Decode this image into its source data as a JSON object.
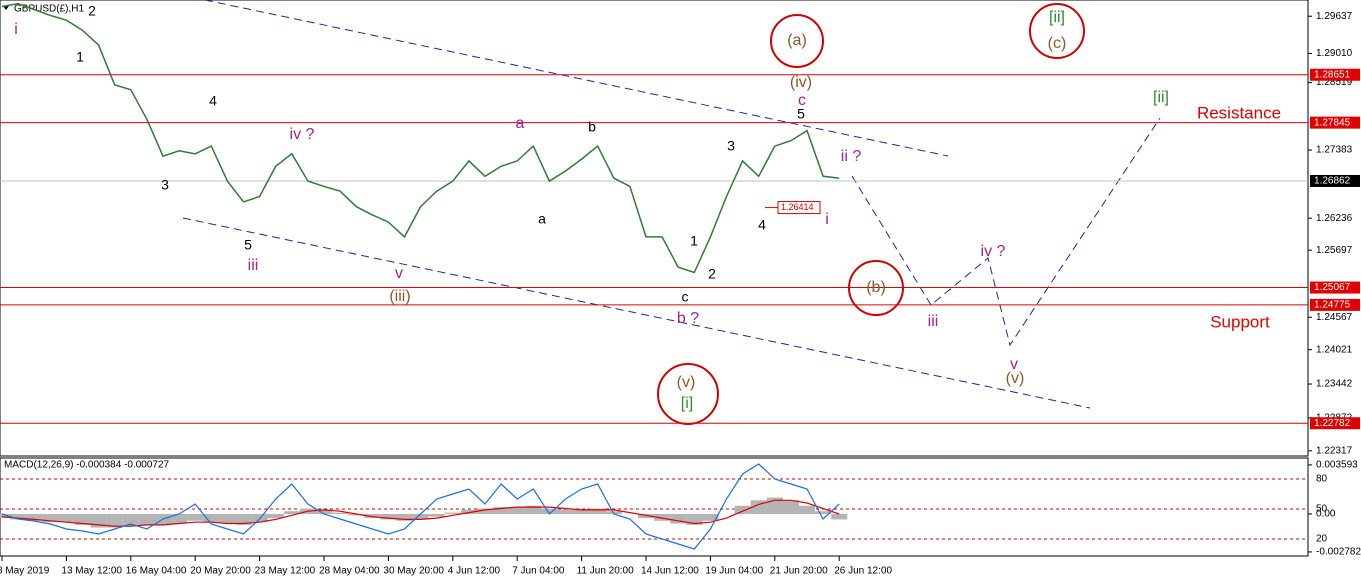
{
  "window_title": "GBPUSD(£),H1",
  "chart_data": [
    {
      "type": "line",
      "categories": [
        "8 May 2019",
        null,
        null,
        null,
        "13 May 12:00",
        null,
        null,
        null,
        "16 May 04:00",
        null,
        null,
        null,
        "20 May 20:00",
        null,
        null,
        null,
        "23 May 12:00",
        null,
        null,
        null,
        "28 May 04:00",
        null,
        null,
        null,
        "30 May 20:00",
        null,
        null,
        null,
        "4 Jun 12:00",
        null,
        null,
        null,
        "7 Jun 04:00",
        null,
        null,
        null,
        "11 Jun 20:00",
        null,
        null,
        null,
        "14 Jun 12:00",
        null,
        null,
        null,
        "19 Jun 04:00",
        null,
        null,
        null,
        "21 Jun 20:00",
        null,
        null,
        null,
        "26 Jun 12:00"
      ],
      "series": [
        {
          "color": "#2e7d32",
          "values": [
            1.298,
            1.2985,
            1.2975,
            1.2965,
            1.2957,
            1.294,
            1.2915,
            1.2848,
            1.284,
            1.279,
            1.2728,
            1.2737,
            1.2732,
            1.2745,
            1.2686,
            1.2651,
            1.266,
            1.2711,
            1.2732,
            1.2686,
            1.2677,
            1.2669,
            1.2643,
            1.2629,
            1.2617,
            1.2592,
            1.2643,
            1.2669,
            1.2686,
            1.272,
            1.2694,
            1.2711,
            1.272,
            1.2745,
            1.2686,
            1.2703,
            1.2723,
            1.2745,
            1.2691,
            1.2677,
            1.2592,
            1.2592,
            1.2541,
            1.2532,
            1.2592,
            1.266,
            1.272,
            1.2694,
            1.2745,
            1.2754,
            1.2771,
            1.2694,
            1.2691
          ]
        }
      ],
      "ylim": [
        1.2223,
        1.2991
      ],
      "yticks": [
        1.29637,
        {
          "value": 1.2901,
          "label": "1.29010"
        },
        1.28519,
        1.27383,
        1.26236,
        1.25697,
        1.24567,
        1.24021,
        1.23442,
        1.22872,
        1.22317
      ],
      "levels": [
        1.28651,
        1.27845,
        1.25067,
        1.24775,
        1.22782
      ],
      "level_color": "#e00000",
      "last_price": 1.26862,
      "marker_price": 1.26414,
      "annotations": [
        "i",
        "2",
        "1",
        "4",
        "3",
        "5",
        "iii",
        "iv ?",
        "v",
        "(iii)",
        "a",
        "b",
        "a",
        "c",
        "b ?",
        "1",
        "2",
        "3",
        "4",
        "5",
        "c",
        "(iv)",
        "(a)",
        "ii ?",
        "i",
        "(b)",
        "iii",
        "iv ?",
        "v",
        "(v)",
        "(v)",
        "[i]",
        "[ii]",
        "(c)",
        "[ii]",
        "Resistance",
        "Support"
      ]
    },
    {
      "type": "macd",
      "title": "MACD(12,26,9) -0.000384 -0.000727",
      "ylim": [
        -0.00308,
        0.0041
      ],
      "yticks": [
        0.003593,
        {
          "value": 0,
          "label": "0.00"
        },
        -0.002782
      ],
      "y2lim": [
        3,
        101
      ],
      "y2ticks": [
        80,
        50,
        20
      ],
      "series": [
        {
          "type": "bar",
          "color": "#b4b4b4",
          "values": [
            -0.0003,
            -0.0004,
            -0.0005,
            -0.0006,
            -0.0006,
            -0.0008,
            -0.001,
            -0.001,
            -0.0009,
            -0.0008,
            -0.0008,
            -0.0007,
            -0.0005,
            -0.0006,
            -0.0007,
            -0.0008,
            -0.0006,
            -0.0003,
            0.0002,
            0.0004,
            0.0003,
            0.0001,
            -0.0001,
            -0.0003,
            -0.0004,
            -0.0005,
            -0.0004,
            -0.0002,
            0.0001,
            0.0003,
            0.0004,
            0.0005,
            0.0005,
            0.0006,
            0.0004,
            0.0003,
            0.0003,
            0.0004,
            0.0002,
            0,
            -0.0003,
            -0.0005,
            -0.0007,
            -0.0008,
            -0.0005,
            0,
            0.0006,
            0.001,
            0.0012,
            0.001,
            0.0006,
            0.0002,
            -0.0004
          ]
        },
        {
          "type": "line",
          "color": "#e00000",
          "values": [
            -0.0002,
            -0.0003,
            -0.0004,
            -0.0005,
            -0.0006,
            -0.0007,
            -0.0008,
            -0.0009,
            -0.0009,
            -0.0008,
            -0.0008,
            -0.0007,
            -0.0006,
            -0.0006,
            -0.0007,
            -0.0007,
            -0.0006,
            -0.0004,
            -0.0001,
            0.0002,
            0.0003,
            0.0002,
            0,
            -0.0002,
            -0.0003,
            -0.0004,
            -0.0004,
            -0.0003,
            -0.0001,
            0.0001,
            0.0003,
            0.0004,
            0.0005,
            0.0005,
            0.0005,
            0.0004,
            0.0003,
            0.0003,
            0.0003,
            0.0001,
            -0.0001,
            -0.0003,
            -0.0005,
            -0.0007,
            -0.0006,
            -0.0003,
            0.0002,
            0.0007,
            0.001,
            0.001,
            0.0008,
            0.0004,
            0
          ]
        },
        {
          "type": "line",
          "axis": "y2",
          "color": "#1e6fe0",
          "values": [
            45,
            40,
            38,
            35,
            30,
            28,
            25,
            30,
            35,
            30,
            40,
            45,
            55,
            35,
            30,
            25,
            40,
            60,
            75,
            55,
            45,
            40,
            35,
            30,
            25,
            30,
            45,
            60,
            65,
            70,
            55,
            75,
            60,
            70,
            45,
            60,
            70,
            75,
            45,
            40,
            25,
            20,
            15,
            10,
            30,
            60,
            85,
            95,
            80,
            75,
            70,
            40,
            55
          ]
        }
      ]
    }
  ]
}
